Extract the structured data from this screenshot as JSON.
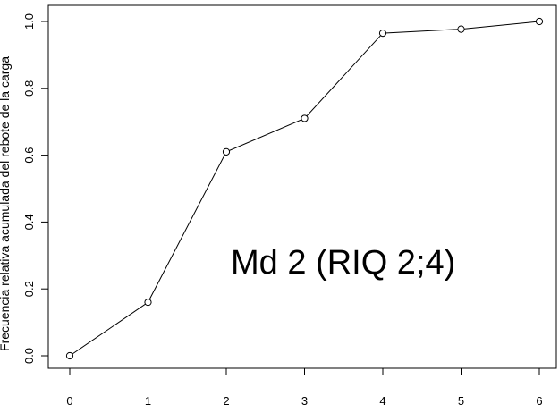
{
  "chart_data": {
    "type": "line",
    "title": "",
    "xlabel": "",
    "ylabel": "Frecuencia relativa acumulada del rebote de la carga",
    "x": [
      0,
      1,
      2,
      3,
      4,
      5,
      6
    ],
    "series": [
      {
        "values": [
          0.0,
          0.16,
          0.61,
          0.71,
          0.965,
          0.977,
          1.0
        ]
      }
    ],
    "xlim": [
      0,
      6
    ],
    "ylim": [
      0,
      1
    ],
    "xticks": [
      "0",
      "1",
      "2",
      "3",
      "4",
      "5",
      "6"
    ],
    "yticks": [
      "0.0",
      "0.2",
      "0.4",
      "0.6",
      "0.8",
      "1.0"
    ],
    "grid": false,
    "marker": "open-circle",
    "line_color": "#000000",
    "annotation": "Md 2 (RIQ  2;4)"
  }
}
